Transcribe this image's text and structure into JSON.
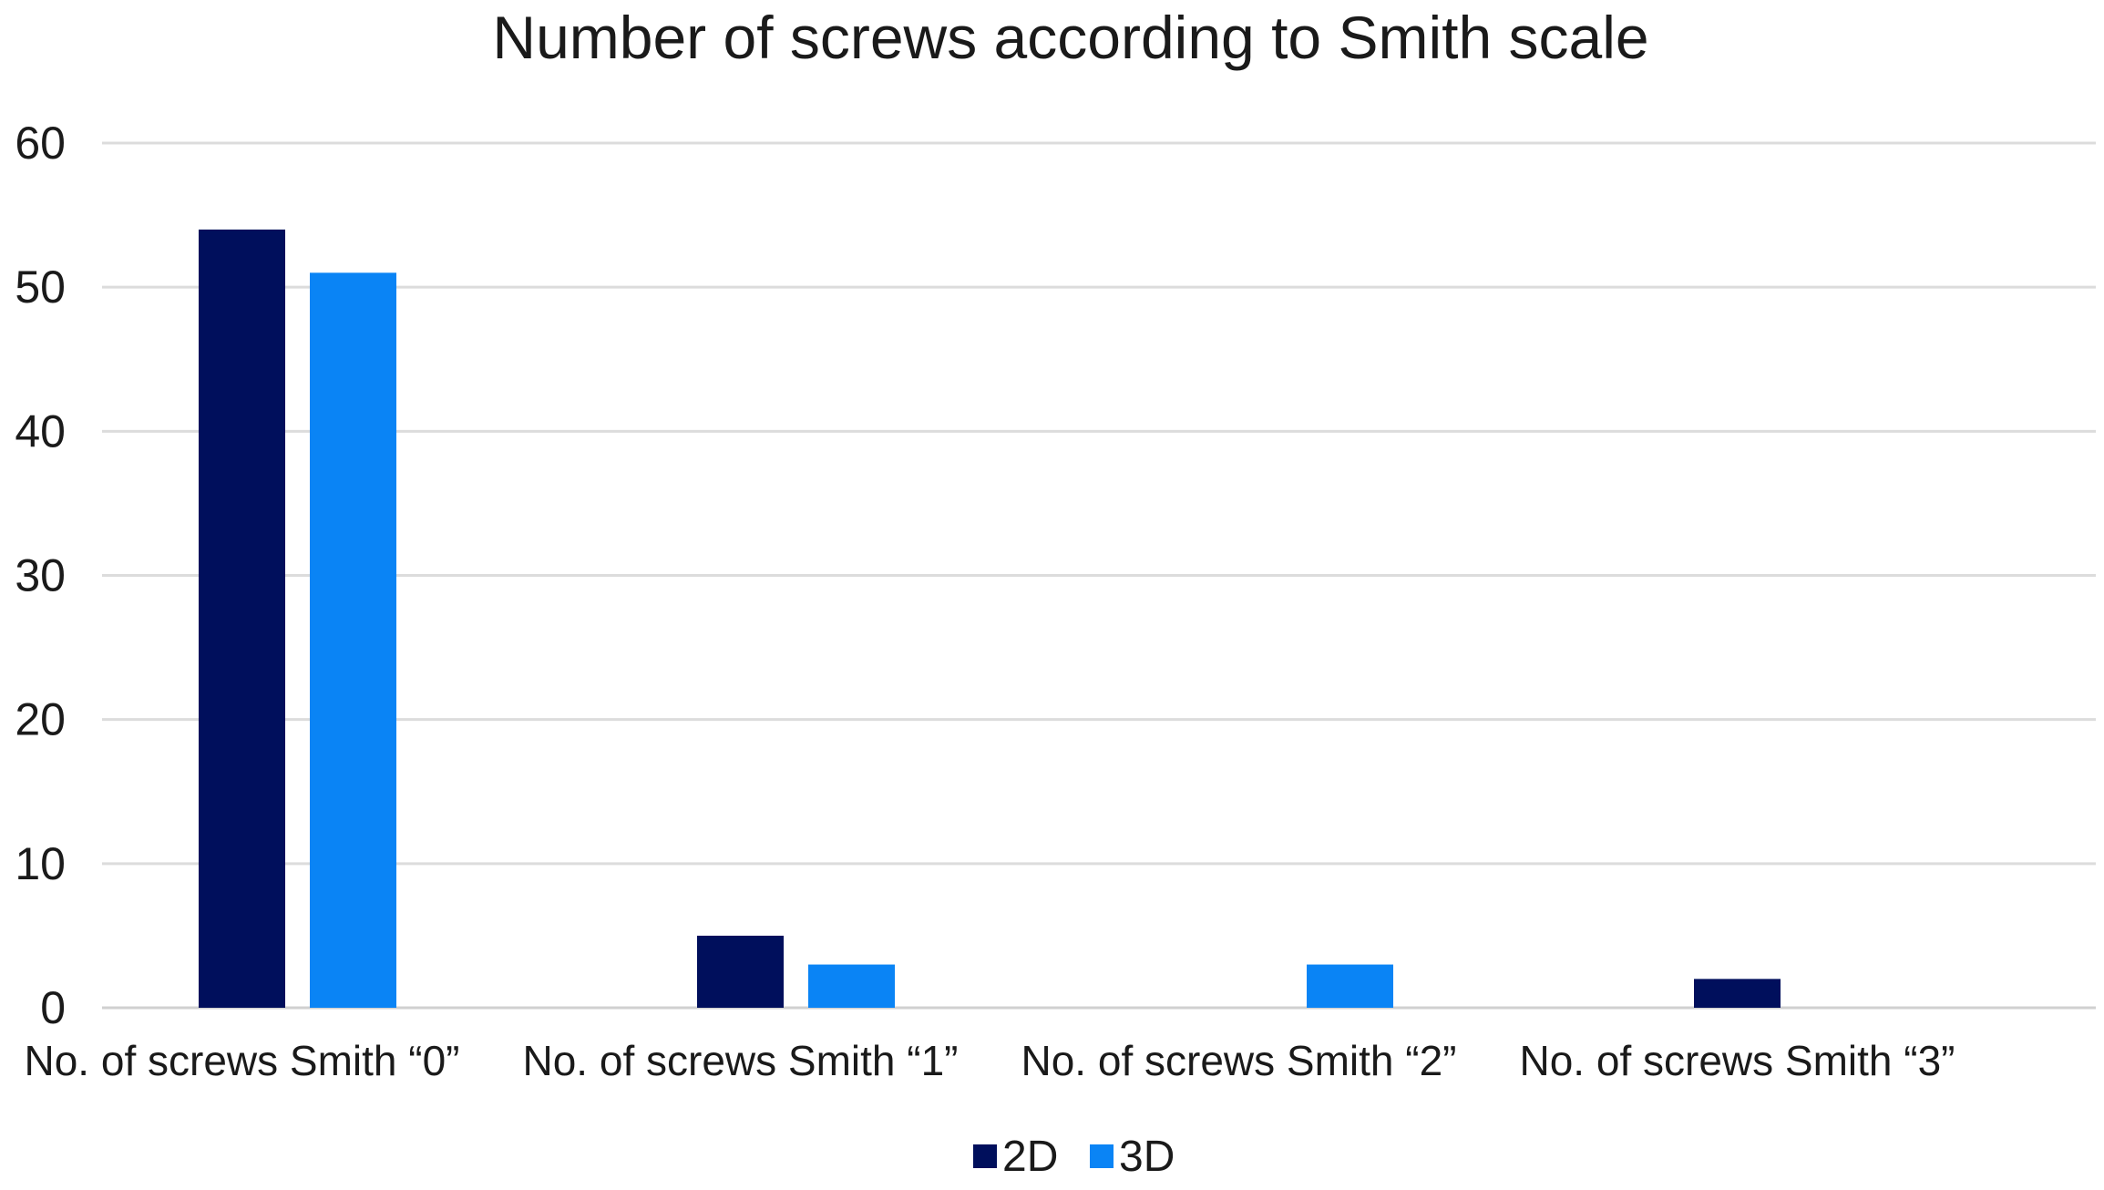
{
  "chart_data": {
    "type": "bar",
    "title": "Number of screws according to Smith scale",
    "xlabel": "",
    "ylabel": "",
    "categories": [
      "No. of screws Smith “0”",
      "No. of screws Smith “1”",
      "No. of screws Smith “2”",
      "No. of screws Smith “3”"
    ],
    "series": [
      {
        "name": "2D",
        "color": "#000F5C",
        "values": [
          54,
          5,
          0,
          2
        ]
      },
      {
        "name": "3D",
        "color": "#0A84F5",
        "values": [
          51,
          3,
          3,
          0
        ]
      }
    ],
    "ylim": [
      0,
      60
    ],
    "yticks": [
      0,
      10,
      20,
      30,
      40,
      50,
      60
    ],
    "grid": true,
    "legend_position": "bottom-center"
  }
}
